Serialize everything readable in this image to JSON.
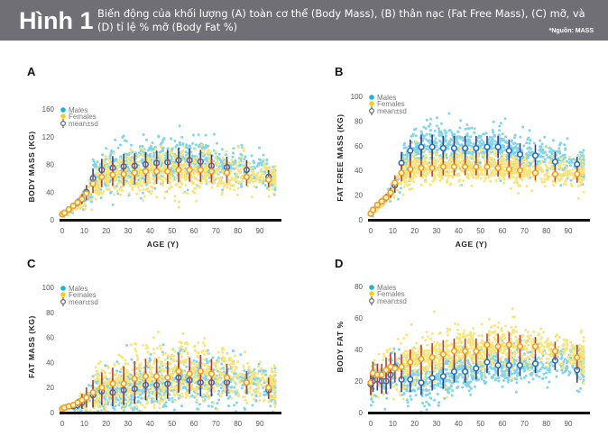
{
  "header": {
    "figure_label": "Hình 1",
    "caption": "Biến động của khối lượng (A) toàn cơ thể (Body Mass), (B) thân nạc (Fat Free Mass), (C) mỡ, và (D) tỉ lệ % mỡ (Body Fat %)",
    "source": "*Nguồn: MASS"
  },
  "colors": {
    "banner": "#6f6f75",
    "males": "#1bb3d6",
    "females": "#f5cf10",
    "male_mean": "#2a6fb8",
    "female_mean": "#f0a020",
    "male_err": "#3a3a8c",
    "female_err": "#b8403a",
    "axis": "#111111"
  },
  "chart_data": [
    {
      "panel": "A",
      "type": "scatter",
      "title": "",
      "xlabel": "AGE (Y)",
      "ylabel": "BODY MASS (KG)",
      "xlim": [
        0,
        100
      ],
      "ylim": [
        0,
        160
      ],
      "xticks": [
        0,
        10,
        20,
        30,
        40,
        50,
        60,
        70,
        80,
        90
      ],
      "yticks": [
        0,
        40,
        80,
        120,
        160
      ],
      "legend": [
        "Males",
        "Females",
        "mean±sd"
      ],
      "legend_position": "top-left",
      "x": [
        0,
        1,
        3,
        5,
        7,
        9,
        11,
        14,
        18,
        23,
        28,
        33,
        38,
        43,
        48,
        53,
        58,
        63,
        68,
        75,
        84,
        94
      ],
      "series": [
        {
          "name": "Males",
          "mean": [
            8,
            10,
            15,
            20,
            25,
            30,
            40,
            60,
            72,
            75,
            77,
            78,
            80,
            82,
            83,
            86,
            86,
            84,
            78,
            76,
            72,
            62
          ],
          "sd": [
            2,
            2,
            3,
            4,
            5,
            7,
            10,
            14,
            16,
            17,
            18,
            18,
            18,
            18,
            18,
            18,
            17,
            17,
            16,
            15,
            14,
            10
          ]
        },
        {
          "name": "Females",
          "mean": [
            8,
            10,
            15,
            20,
            25,
            30,
            38,
            52,
            62,
            65,
            66,
            68,
            70,
            70,
            70,
            72,
            72,
            72,
            70,
            68,
            62,
            58
          ],
          "sd": [
            2,
            2,
            3,
            4,
            5,
            7,
            10,
            13,
            15,
            16,
            17,
            17,
            17,
            18,
            18,
            18,
            17,
            17,
            16,
            15,
            13,
            11
          ]
        }
      ]
    },
    {
      "panel": "B",
      "type": "scatter",
      "title": "",
      "xlabel": "AGE (Y)",
      "ylabel": "FAT FREE MASS (KG)",
      "xlim": [
        0,
        100
      ],
      "ylim": [
        0,
        100
      ],
      "xticks": [
        0,
        10,
        20,
        30,
        40,
        50,
        60,
        70,
        80,
        90
      ],
      "yticks": [
        0,
        20,
        40,
        60,
        80,
        100
      ],
      "legend": [
        "Males",
        "Females",
        "mean±sd"
      ],
      "legend_position": "top-left",
      "x": [
        0,
        1,
        3,
        5,
        7,
        9,
        11,
        14,
        18,
        23,
        28,
        33,
        38,
        43,
        48,
        53,
        58,
        63,
        68,
        75,
        84,
        94
      ],
      "series": [
        {
          "name": "Males",
          "mean": [
            5,
            8,
            12,
            15,
            18,
            22,
            28,
            46,
            56,
            59,
            59,
            58,
            58,
            58,
            58,
            59,
            59,
            56,
            53,
            52,
            47,
            45
          ],
          "sd": [
            1,
            1,
            2,
            2,
            3,
            4,
            6,
            9,
            9,
            10,
            10,
            10,
            10,
            10,
            10,
            9,
            9,
            9,
            9,
            9,
            8,
            6
          ]
        },
        {
          "name": "Females",
          "mean": [
            5,
            8,
            12,
            15,
            18,
            22,
            30,
            38,
            41,
            42,
            42,
            43,
            43,
            43,
            43,
            43,
            42,
            41,
            40,
            38,
            37,
            37
          ],
          "sd": [
            1,
            1,
            2,
            2,
            3,
            4,
            6,
            7,
            7,
            7,
            7,
            7,
            7,
            7,
            7,
            7,
            7,
            7,
            6,
            6,
            6,
            7
          ]
        }
      ]
    },
    {
      "panel": "C",
      "type": "scatter",
      "title": "",
      "xlabel": "",
      "ylabel": "FAT MASS (KG)",
      "xlim": [
        0,
        100
      ],
      "ylim": [
        0,
        100
      ],
      "xticks": [
        0,
        10,
        20,
        30,
        40,
        50,
        60,
        70,
        80,
        90
      ],
      "yticks": [
        0,
        20,
        40,
        60,
        80,
        100
      ],
      "legend": [
        "Males",
        "Females",
        "mean±sd"
      ],
      "legend_position": "top-left",
      "x": [
        0,
        1,
        3,
        5,
        7,
        9,
        11,
        14,
        18,
        23,
        28,
        33,
        38,
        43,
        48,
        53,
        58,
        63,
        68,
        75,
        84,
        94
      ],
      "series": [
        {
          "name": "Males",
          "mean": [
            3,
            4,
            5,
            5,
            6,
            8,
            12,
            14,
            17,
            16,
            18,
            19,
            22,
            22,
            23,
            28,
            26,
            24,
            24,
            24,
            24,
            18
          ],
          "sd": [
            1,
            1,
            1,
            2,
            3,
            5,
            8,
            10,
            11,
            11,
            12,
            12,
            12,
            12,
            12,
            12,
            11,
            11,
            11,
            11,
            9,
            7
          ]
        },
        {
          "name": "Females",
          "mean": [
            3,
            4,
            5,
            6,
            8,
            10,
            12,
            16,
            20,
            23,
            23,
            27,
            29,
            29,
            28,
            33,
            31,
            33,
            31,
            28,
            24,
            20
          ],
          "sd": [
            1,
            1,
            1,
            2,
            3,
            5,
            8,
            10,
            12,
            13,
            14,
            14,
            14,
            14,
            13,
            15,
            13,
            13,
            12,
            11,
            9,
            8
          ]
        }
      ]
    },
    {
      "panel": "D",
      "type": "scatter",
      "title": "",
      "xlabel": "",
      "ylabel": "BODY FAT %",
      "xlim": [
        0,
        100
      ],
      "ylim": [
        0,
        80
      ],
      "xticks": [
        0,
        10,
        20,
        30,
        40,
        50,
        60,
        70,
        80,
        90
      ],
      "yticks": [
        0,
        20,
        40,
        60,
        80
      ],
      "legend": [
        "Males",
        "Females",
        "mean±sd"
      ],
      "legend_position": "top-left",
      "x": [
        0,
        1,
        3,
        5,
        7,
        9,
        11,
        14,
        18,
        23,
        28,
        33,
        38,
        43,
        48,
        53,
        58,
        63,
        68,
        75,
        84,
        94
      ],
      "series": [
        {
          "name": "Males",
          "mean": [
            18,
            20,
            21,
            20,
            20,
            24,
            29,
            21,
            21,
            19,
            22,
            23,
            26,
            26,
            28,
            32,
            30,
            30,
            30,
            31,
            33,
            27
          ],
          "sd": [
            7,
            7,
            7,
            8,
            8,
            9,
            9,
            8,
            8,
            8,
            8,
            8,
            7,
            7,
            7,
            7,
            7,
            7,
            7,
            6,
            6,
            8
          ]
        },
        {
          "name": "Females",
          "mean": [
            19,
            25,
            24,
            24,
            27,
            29,
            28,
            29,
            32,
            34,
            35,
            37,
            39,
            39,
            39,
            43,
            42,
            43,
            42,
            42,
            39,
            35
          ],
          "sd": [
            7,
            7,
            7,
            7,
            8,
            9,
            9,
            8,
            8,
            9,
            9,
            9,
            8,
            8,
            8,
            7,
            8,
            8,
            7,
            6,
            6,
            8
          ]
        }
      ]
    }
  ]
}
